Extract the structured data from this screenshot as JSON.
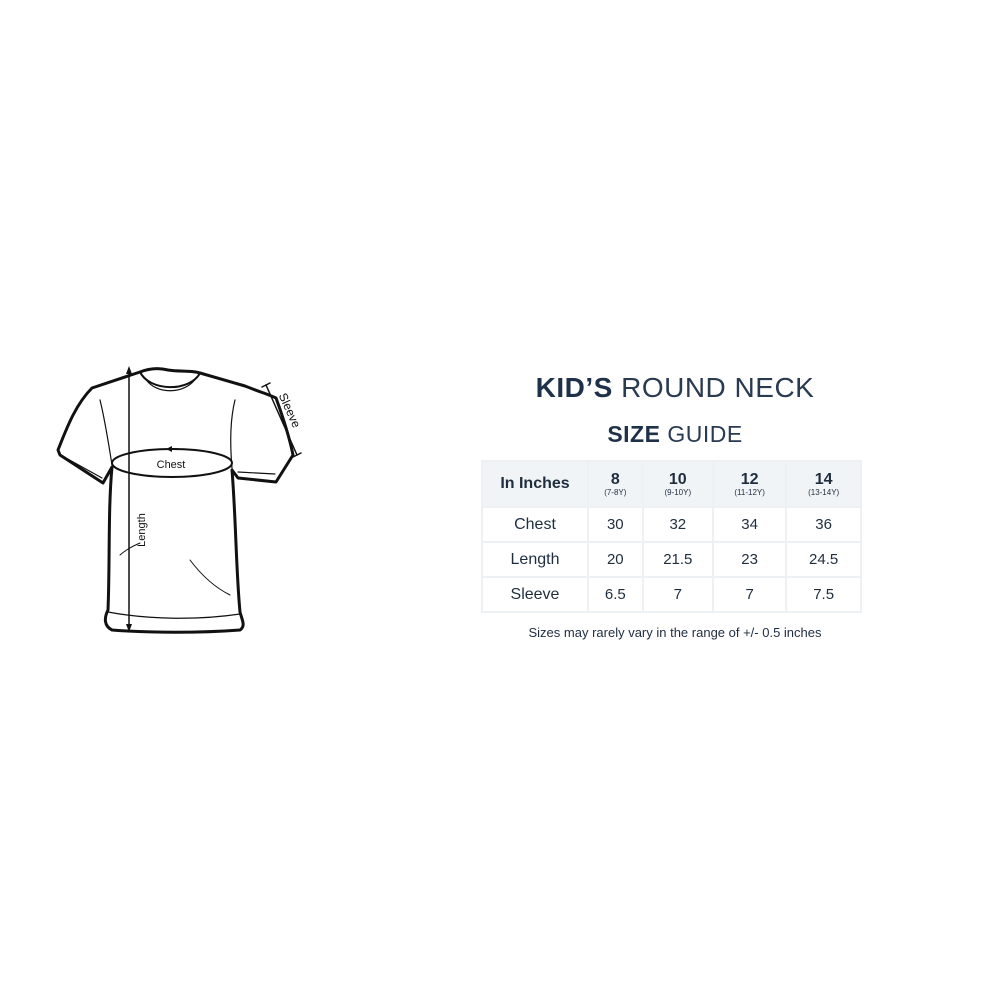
{
  "diagram": {
    "chest_label": "Chest",
    "length_label": "Length",
    "sleeve_label": "Sleeve"
  },
  "title": {
    "line1_bold": "KID’S",
    "line1_light": "ROUND NECK",
    "line2_bold": "SIZE",
    "line2_light": "GUIDE"
  },
  "table": {
    "corner": "In Inches",
    "columns": [
      {
        "size": "8",
        "age": "(7-8Y)"
      },
      {
        "size": "10",
        "age": "(9-10Y)"
      },
      {
        "size": "12",
        "age": "(11-12Y)"
      },
      {
        "size": "14",
        "age": "(13-14Y)"
      }
    ],
    "rows": [
      {
        "label": "Chest",
        "values": [
          "30",
          "32",
          "34",
          "36"
        ]
      },
      {
        "label": "Length",
        "values": [
          "20",
          "21.5",
          "23",
          "24.5"
        ]
      },
      {
        "label": "Sleeve",
        "values": [
          "6.5",
          "7",
          "7",
          "7.5"
        ]
      }
    ]
  },
  "note": "Sizes may rarely vary in the range of +/- 0.5 inches",
  "colors": {
    "text": "#1f2d3d",
    "header_bg": "#f0f4f7",
    "border": "#eef1f4"
  }
}
